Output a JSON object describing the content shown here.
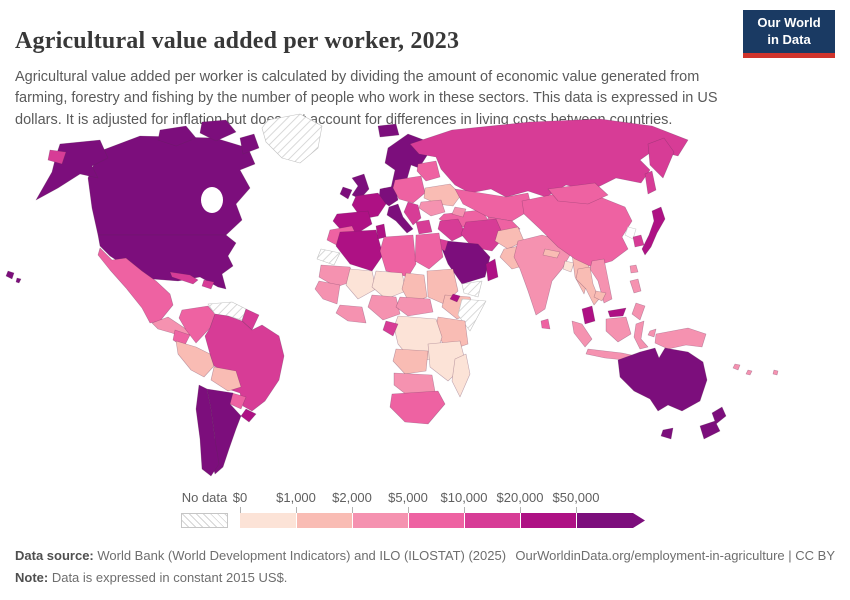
{
  "header": {
    "title": "Agricultural value added per worker, 2023",
    "subtitle": "Agricultural value added per worker is calculated by dividing the amount of economic value generated from farming, forestry and fishing by the number of people who work in these sectors. This data is expressed in US dollars. It is adjusted for inflation but does not account for differences in living costs between countries.",
    "logo": {
      "line1": "Our World",
      "line2": "in Data",
      "bg_color": "#1a3a63",
      "accent_color": "#d0342c"
    }
  },
  "chart_data": {
    "type": "choropleth_map",
    "title": "Agricultural value added per worker, 2023",
    "unit": "constant 2015 US$ per worker",
    "legend_position": "bottom",
    "legend": {
      "no_data_label": "No data",
      "no_data_style": "hatched",
      "tick_labels": [
        "$0",
        "$1,000",
        "$2,000",
        "$5,000",
        "$10,000",
        "$20,000",
        "$50,000"
      ],
      "bins": [
        {
          "range": "$0-$1,000",
          "color": "#fce3d7"
        },
        {
          "range": "$1,000-$2,000",
          "color": "#f9bcb4"
        },
        {
          "range": "$2,000-$5,000",
          "color": "#f592b0"
        },
        {
          "range": "$5,000-$10,000",
          "color": "#ee62a2"
        },
        {
          "range": "$10,000-$20,000",
          "color": "#d73c96"
        },
        {
          "range": "$20,000-$50,000",
          "color": "#ae1184"
        },
        {
          "range": "$50,000+",
          "color": "#7c0e7c"
        }
      ]
    },
    "regions": [
      {
        "id": "usa",
        "label": "United States",
        "bin": 6
      },
      {
        "id": "canada",
        "label": "Canada",
        "bin": 6
      },
      {
        "id": "greenland",
        "label": "Greenland",
        "bin": "no-data"
      },
      {
        "id": "mexico",
        "label": "Mexico",
        "bin": 3
      },
      {
        "id": "centralamerica",
        "label": "Central America",
        "bin": 2
      },
      {
        "id": "cuba",
        "label": "Cuba",
        "bin": 4
      },
      {
        "id": "hispaniola",
        "label": "Dominican Republic",
        "bin": 4
      },
      {
        "id": "colombia",
        "label": "Colombia",
        "bin": 3
      },
      {
        "id": "venezuela",
        "label": "Venezuela",
        "bin": "no-data"
      },
      {
        "id": "guyanas",
        "label": "Guyana and Suriname",
        "bin": 4
      },
      {
        "id": "ecuador",
        "label": "Ecuador",
        "bin": 3
      },
      {
        "id": "peru",
        "label": "Peru",
        "bin": 1
      },
      {
        "id": "brazil",
        "label": "Brazil",
        "bin": 4
      },
      {
        "id": "bolivia",
        "label": "Bolivia",
        "bin": 1
      },
      {
        "id": "paraguay",
        "label": "Paraguay",
        "bin": 3
      },
      {
        "id": "uruguay",
        "label": "Uruguay",
        "bin": 5
      },
      {
        "id": "chile",
        "label": "Chile",
        "bin": 6
      },
      {
        "id": "argentina",
        "label": "Argentina",
        "bin": 6
      },
      {
        "id": "iceland",
        "label": "Iceland",
        "bin": 6
      },
      {
        "id": "uk",
        "label": "United Kingdom",
        "bin": 6
      },
      {
        "id": "ireland",
        "label": "Ireland",
        "bin": 6
      },
      {
        "id": "scandinavia",
        "label": "Scandinavia",
        "bin": 6
      },
      {
        "id": "denmark",
        "label": "Denmark",
        "bin": 6
      },
      {
        "id": "germany",
        "label": "Germany",
        "bin": 6
      },
      {
        "id": "france",
        "label": "France",
        "bin": 5
      },
      {
        "id": "spain",
        "label": "Spain",
        "bin": 5
      },
      {
        "id": "italy",
        "label": "Italy",
        "bin": 6
      },
      {
        "id": "easterneurope",
        "label": "Central Europe",
        "bin": 3
      },
      {
        "id": "baltics",
        "label": "Baltics and Belarus",
        "bin": 3
      },
      {
        "id": "ukraine",
        "label": "Ukraine",
        "bin": 1
      },
      {
        "id": "romania",
        "label": "Romania and Bulgaria",
        "bin": 2
      },
      {
        "id": "balkans",
        "label": "Balkans",
        "bin": 4
      },
      {
        "id": "greece",
        "label": "Greece",
        "bin": 4
      },
      {
        "id": "turkey",
        "label": "Turkey",
        "bin": 3
      },
      {
        "id": "russia",
        "label": "Russia",
        "bin": 4
      },
      {
        "id": "kazakhstan",
        "label": "Kazakhstan",
        "bin": 3
      },
      {
        "id": "uzbekistan",
        "label": "Uzbekistan",
        "bin": 3
      },
      {
        "id": "turkmenistan",
        "label": "Turkmenistan",
        "bin": "no-data"
      },
      {
        "id": "caucasus",
        "label": "Caucasus",
        "bin": 2
      },
      {
        "id": "iraq",
        "label": "Iraq and Syria",
        "bin": 4
      },
      {
        "id": "iran",
        "label": "Iran",
        "bin": 4
      },
      {
        "id": "saudiarabia",
        "label": "Saudi Arabia",
        "bin": 6
      },
      {
        "id": "yemen",
        "label": "Yemen",
        "bin": "no-data"
      },
      {
        "id": "oman",
        "label": "Oman",
        "bin": 5
      },
      {
        "id": "israel",
        "label": "Israel and Jordan",
        "bin": 4
      },
      {
        "id": "morocco",
        "label": "Morocco",
        "bin": 3
      },
      {
        "id": "wsahara",
        "label": "Western Sahara",
        "bin": "no-data"
      },
      {
        "id": "algeria",
        "label": "Algeria",
        "bin": 5
      },
      {
        "id": "tunisia",
        "label": "Tunisia",
        "bin": 5
      },
      {
        "id": "libya",
        "label": "Libya",
        "bin": 3
      },
      {
        "id": "egypt",
        "label": "Egypt",
        "bin": 3
      },
      {
        "id": "mauritania",
        "label": "Mauritania",
        "bin": 2
      },
      {
        "id": "mali",
        "label": "Mali",
        "bin": 0
      },
      {
        "id": "niger",
        "label": "Niger",
        "bin": 0
      },
      {
        "id": "chad",
        "label": "Chad",
        "bin": 1
      },
      {
        "id": "sudan",
        "label": "Sudan",
        "bin": 1
      },
      {
        "id": "senegal",
        "label": "Senegal and Guinea",
        "bin": 2
      },
      {
        "id": "ghana",
        "label": "Ghana and Cote d'Ivoire",
        "bin": 2
      },
      {
        "id": "nigeria",
        "label": "Nigeria",
        "bin": 2
      },
      {
        "id": "cameroon",
        "label": "Cameroon and CAR",
        "bin": 2
      },
      {
        "id": "ethiopia",
        "label": "Ethiopia",
        "bin": 1
      },
      {
        "id": "somalia",
        "label": "Somalia",
        "bin": "no-data"
      },
      {
        "id": "djibouti",
        "label": "Djibouti",
        "bin": 5
      },
      {
        "id": "kenya",
        "label": "Kenya and Tanzania",
        "bin": 1
      },
      {
        "id": "drc",
        "label": "Democratic Republic of Congo",
        "bin": 0
      },
      {
        "id": "gabon",
        "label": "Gabon",
        "bin": 4
      },
      {
        "id": "angola",
        "label": "Angola",
        "bin": 1
      },
      {
        "id": "zambia",
        "label": "Zambia and Mozambique",
        "bin": 0
      },
      {
        "id": "namibia",
        "label": "Namibia and Botswana",
        "bin": 2
      },
      {
        "id": "southafrica",
        "label": "South Africa",
        "bin": 3
      },
      {
        "id": "madagascar",
        "label": "Madagascar",
        "bin": 0
      },
      {
        "id": "afghanistan",
        "label": "Afghanistan",
        "bin": 1
      },
      {
        "id": "pakistan",
        "label": "Pakistan",
        "bin": 1
      },
      {
        "id": "india",
        "label": "India",
        "bin": 2
      },
      {
        "id": "nepal",
        "label": "Nepal",
        "bin": 1
      },
      {
        "id": "bangladesh",
        "label": "Bangladesh",
        "bin": 0
      },
      {
        "id": "srilanka",
        "label": "Sri Lanka",
        "bin": 3
      },
      {
        "id": "myanmar",
        "label": "Myanmar",
        "bin": 1
      },
      {
        "id": "china",
        "label": "China",
        "bin": 3
      },
      {
        "id": "mongolia",
        "label": "Mongolia",
        "bin": 3
      },
      {
        "id": "northkorea",
        "label": "North Korea",
        "bin": "none"
      },
      {
        "id": "southkorea",
        "label": "South Korea",
        "bin": 4
      },
      {
        "id": "japan",
        "label": "Japan",
        "bin": 5
      },
      {
        "id": "taiwan",
        "label": "Taiwan",
        "bin": 2
      },
      {
        "id": "thailand",
        "label": "Thailand",
        "bin": 1
      },
      {
        "id": "vietnam",
        "label": "Vietnam",
        "bin": 2
      },
      {
        "id": "cambodia",
        "label": "Cambodia",
        "bin": 1
      },
      {
        "id": "malaysia",
        "label": "Malaysia",
        "bin": 5
      },
      {
        "id": "philippines",
        "label": "Philippines",
        "bin": 2
      },
      {
        "id": "indonesia",
        "label": "Indonesia",
        "bin": 2
      },
      {
        "id": "newguinea",
        "label": "New Guinea",
        "bin": 2
      },
      {
        "id": "australia",
        "label": "Australia",
        "bin": 6
      },
      {
        "id": "newzealand",
        "label": "New Zealand",
        "bin": 6
      },
      {
        "id": "pacific",
        "label": "Pacific Islands",
        "bin": 2
      }
    ]
  },
  "footer": {
    "datasource_label": "Data source:",
    "datasource_text": " World Bank (World Development Indicators) and ILO (ILOSTAT) (2025)",
    "attribution": "OurWorldinData.org/employment-in-agriculture | CC BY",
    "note_label": "Note:",
    "note_text": " Data is expressed in constant 2015 US$."
  }
}
